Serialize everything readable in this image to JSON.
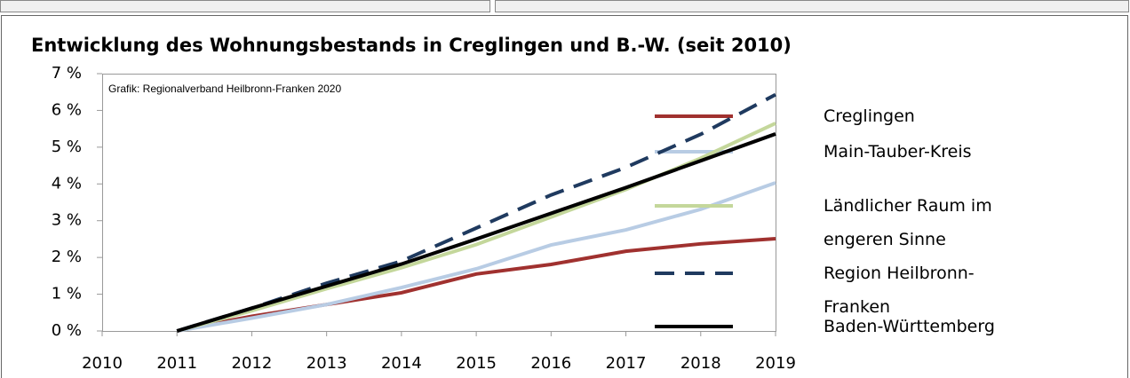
{
  "chart_data": {
    "type": "line",
    "title": "Entwicklung des Wohnungsbestands in Creglingen und B.-W. (seit 2010)",
    "annotation": "Grafik: Regionalverband Heilbronn-Franken 2020",
    "x": [
      2011,
      2012,
      2013,
      2014,
      2015,
      2016,
      2017,
      2018,
      2019
    ],
    "series": [
      {
        "name": "Creglingen",
        "color": "#a0312f",
        "line_style": "solid",
        "values": [
          0,
          0.4,
          0.72,
          1.04,
          1.55,
          1.81,
          2.17,
          2.37,
          2.51
        ]
      },
      {
        "name": "Main-Tauber-Kreis",
        "color": "#b8cce4",
        "line_style": "solid",
        "values": [
          0,
          0.35,
          0.72,
          1.18,
          1.69,
          2.34,
          2.75,
          3.31,
          4.03
        ]
      },
      {
        "name": "Ländlicher Raum im engeren Sinne",
        "color": "#c4d79b",
        "line_style": "solid",
        "values": [
          0,
          0.55,
          1.15,
          1.72,
          2.35,
          3.1,
          3.85,
          4.7,
          5.65
        ]
      },
      {
        "name": "Region Heilbronn-Franken",
        "color": "#1f3a5f",
        "line_style": "dashed",
        "values": [
          0,
          0.62,
          1.3,
          1.9,
          2.8,
          3.7,
          4.45,
          5.35,
          6.43
        ]
      },
      {
        "name": "Baden-Württemberg",
        "color": "#000000",
        "line_style": "solid",
        "values": [
          0,
          0.62,
          1.22,
          1.82,
          2.5,
          3.2,
          3.9,
          4.63,
          5.36
        ]
      }
    ],
    "xlim": [
      2010,
      2019
    ],
    "xticks": [
      2010,
      2011,
      2012,
      2013,
      2014,
      2015,
      2016,
      2017,
      2018,
      2019
    ],
    "ylim": [
      0,
      7
    ],
    "yticks": [
      {
        "value": 0,
        "label": "0 %"
      },
      {
        "value": 1,
        "label": "1 %"
      },
      {
        "value": 2,
        "label": "2 %"
      },
      {
        "value": 3,
        "label": "3 %"
      },
      {
        "value": 4,
        "label": "4 %"
      },
      {
        "value": 5,
        "label": "5 %"
      },
      {
        "value": 6,
        "label": "6 %"
      },
      {
        "value": 7,
        "label": "7 %"
      }
    ],
    "grid": false,
    "legend": "right"
  }
}
